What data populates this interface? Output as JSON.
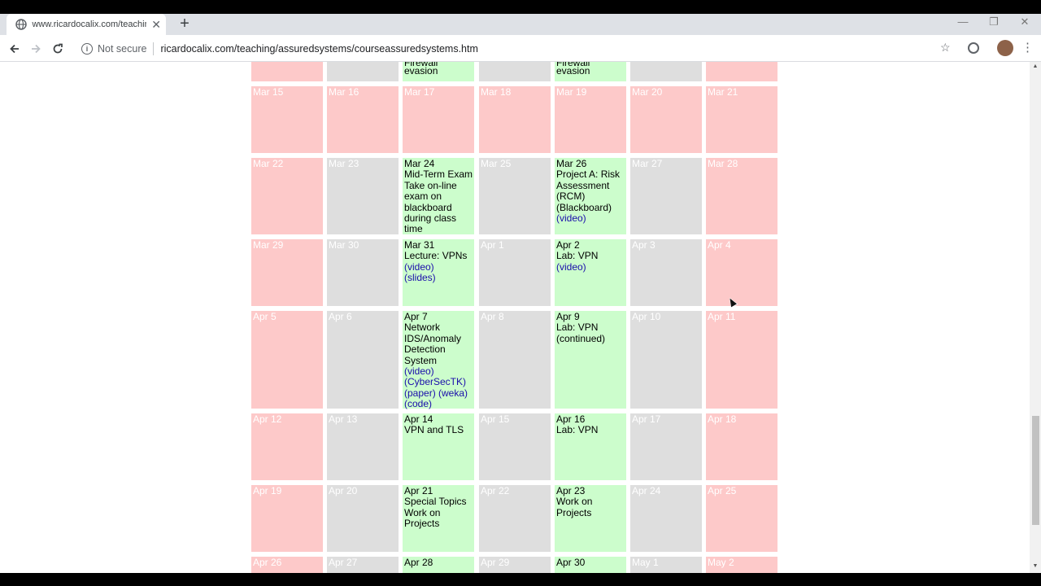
{
  "browser": {
    "tab_title": "www.ricardocalix.com/teaching/assuredsystems",
    "tab_close": "✕",
    "new_tab": "+",
    "security_label": "Not secure",
    "url": "ricardocalix.com/teaching/assuredsystems/courseassuredsystems.htm",
    "window_controls": [
      "—",
      "❐",
      "✕"
    ]
  },
  "calendar": {
    "weeks": [
      {
        "days": [
          {
            "lines": [],
            "color": "pink"
          },
          {
            "lines": [],
            "color": "gray"
          },
          {
            "lines": [
              {
                "text": "Firewall evasion"
              }
            ],
            "color": "green"
          },
          {
            "lines": [],
            "color": "gray"
          },
          {
            "lines": [
              {
                "text": "Firewall evasion"
              }
            ],
            "color": "green"
          },
          {
            "lines": [],
            "color": "gray"
          },
          {
            "lines": [],
            "color": "pink"
          }
        ]
      },
      {
        "days": [
          {
            "date": "Mar 15",
            "lines": [],
            "color": "pink"
          },
          {
            "date": "Mar 16",
            "lines": [],
            "color": "pink"
          },
          {
            "date": "Mar 17",
            "lines": [],
            "color": "pink"
          },
          {
            "date": "Mar 18",
            "lines": [],
            "color": "pink"
          },
          {
            "date": "Mar 19",
            "lines": [],
            "color": "pink"
          },
          {
            "date": "Mar 20",
            "lines": [],
            "color": "pink"
          },
          {
            "date": "Mar 21",
            "lines": [],
            "color": "pink"
          }
        ]
      },
      {
        "days": [
          {
            "date": "Mar 22",
            "lines": [],
            "color": "pink"
          },
          {
            "date": "Mar 23",
            "lines": [],
            "color": "gray"
          },
          {
            "date": "Mar 24",
            "lines": [
              {
                "text": "Mid-Term Exam"
              },
              {
                "text": "Take on-line exam on blackboard during class time"
              }
            ],
            "color": "green"
          },
          {
            "date": "Mar 25",
            "lines": [],
            "color": "gray"
          },
          {
            "date": "Mar 26",
            "lines": [
              {
                "text": "Project A: Risk Assessment (RCM) (Blackboard)"
              },
              {
                "text": "(video)",
                "link": true
              }
            ],
            "color": "green"
          },
          {
            "date": "Mar 27",
            "lines": [],
            "color": "gray"
          },
          {
            "date": "Mar 28",
            "lines": [],
            "color": "pink"
          }
        ]
      },
      {
        "days": [
          {
            "date": "Mar 29",
            "lines": [],
            "color": "pink"
          },
          {
            "date": "Mar 30",
            "lines": [],
            "color": "gray"
          },
          {
            "date": "Mar 31",
            "lines": [
              {
                "text": "Lecture: VPNs"
              },
              {
                "text": "(video)",
                "link": true
              },
              {
                "text": "(slides)",
                "link": true
              }
            ],
            "color": "green"
          },
          {
            "date": "Apr 1",
            "lines": [],
            "color": "gray"
          },
          {
            "date": "Apr 2",
            "lines": [
              {
                "text": "Lab: VPN"
              },
              {
                "text": "(video)",
                "link": true
              }
            ],
            "color": "green"
          },
          {
            "date": "Apr 3",
            "lines": [],
            "color": "gray"
          },
          {
            "date": "Apr 4",
            "lines": [],
            "color": "pink"
          }
        ]
      },
      {
        "days": [
          {
            "date": "Apr 5",
            "lines": [],
            "color": "pink"
          },
          {
            "date": "Apr 6",
            "lines": [],
            "color": "gray"
          },
          {
            "date": "Apr 7",
            "lines": [
              {
                "text": "Network IDS/Anomaly Detection System"
              },
              {
                "text": "(video)",
                "link": true
              },
              {
                "text": "(CyberSecTK)",
                "link": true
              },
              {
                "text": "(paper) (weka)",
                "link": true
              },
              {
                "text": "(code)",
                "link": true
              }
            ],
            "color": "green"
          },
          {
            "date": "Apr 8",
            "lines": [],
            "color": "gray"
          },
          {
            "date": "Apr 9",
            "lines": [
              {
                "text": "Lab: VPN (continued)"
              }
            ],
            "color": "green"
          },
          {
            "date": "Apr 10",
            "lines": [],
            "color": "gray"
          },
          {
            "date": "Apr 11",
            "lines": [],
            "color": "pink"
          }
        ]
      },
      {
        "days": [
          {
            "date": "Apr 12",
            "lines": [],
            "color": "pink"
          },
          {
            "date": "Apr 13",
            "lines": [],
            "color": "gray"
          },
          {
            "date": "Apr 14",
            "lines": [
              {
                "text": "VPN and TLS"
              }
            ],
            "color": "green"
          },
          {
            "date": "Apr 15",
            "lines": [],
            "color": "gray"
          },
          {
            "date": "Apr 16",
            "lines": [
              {
                "text": "Lab: VPN"
              }
            ],
            "color": "green"
          },
          {
            "date": "Apr 17",
            "lines": [],
            "color": "gray"
          },
          {
            "date": "Apr 18",
            "lines": [],
            "color": "pink"
          }
        ]
      },
      {
        "days": [
          {
            "date": "Apr 19",
            "lines": [],
            "color": "pink"
          },
          {
            "date": "Apr 20",
            "lines": [],
            "color": "gray"
          },
          {
            "date": "Apr 21",
            "lines": [
              {
                "text": "Special Topics"
              },
              {
                "text": "Work on Projects"
              }
            ],
            "color": "green"
          },
          {
            "date": "Apr 22",
            "lines": [],
            "color": "gray"
          },
          {
            "date": "Apr 23",
            "lines": [
              {
                "text": "Work on Projects"
              }
            ],
            "color": "green"
          },
          {
            "date": "Apr 24",
            "lines": [],
            "color": "gray"
          },
          {
            "date": "Apr 25",
            "lines": [],
            "color": "pink"
          }
        ]
      },
      {
        "days": [
          {
            "date": "Apr 26",
            "lines": [],
            "color": "pink"
          },
          {
            "date": "Apr 27",
            "lines": [],
            "color": "gray"
          },
          {
            "date": "Apr 28",
            "lines": [],
            "color": "green"
          },
          {
            "date": "Apr 29",
            "lines": [],
            "color": "gray"
          },
          {
            "date": "Apr 30",
            "lines": [],
            "color": "green"
          },
          {
            "date": "May 1",
            "lines": [],
            "color": "gray"
          },
          {
            "date": "May 2",
            "lines": [],
            "color": "pink"
          }
        ]
      }
    ]
  }
}
